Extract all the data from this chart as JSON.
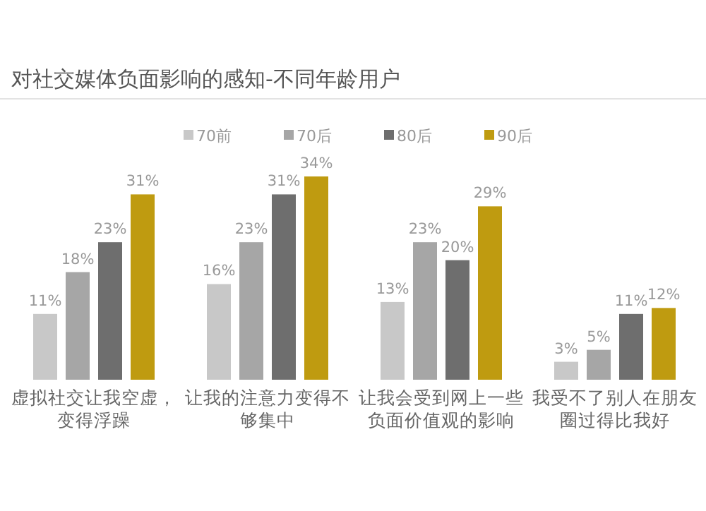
{
  "chart_data": {
    "type": "bar",
    "title": "对社交媒体负面影响的感知-不同年龄用户",
    "categories": [
      "虚拟社交让我空虚，变得浮躁",
      "让我的注意力变得不够集中",
      "让我会受到网上一些负面价值观的影响",
      "我受不了别人在朋友圈过得比我好"
    ],
    "series": [
      {
        "name": "70前",
        "color": "#c8c8c8",
        "values": [
          11,
          16,
          13,
          3
        ],
        "value_labels": [
          "11%",
          "16%",
          "13%",
          "3%"
        ]
      },
      {
        "name": "70后",
        "color": "#a6a6a6",
        "values": [
          18,
          23,
          23,
          5
        ],
        "value_labels": [
          "18%",
          "23%",
          "23%",
          "5%"
        ]
      },
      {
        "name": "80后",
        "color": "#6e6e6e",
        "values": [
          23,
          31,
          20,
          11
        ],
        "value_labels": [
          "23%",
          "31%",
          "20%",
          "11%"
        ]
      },
      {
        "name": "90后",
        "color": "#bf9b10",
        "values": [
          31,
          34,
          29,
          12
        ],
        "value_labels": [
          "31%",
          "34%",
          "29%",
          "12%"
        ]
      }
    ],
    "legend": "top"
  }
}
